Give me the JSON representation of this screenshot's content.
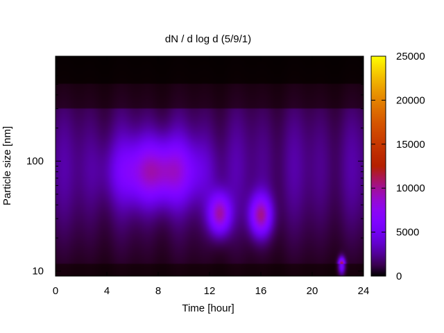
{
  "chart_data": {
    "type": "heatmap",
    "title": "dN / d log d (5/9/1)",
    "xlabel": "Time [hour]",
    "ylabel": "Particle size [nm]",
    "xlim": [
      0,
      24
    ],
    "ylim": [
      9,
      900
    ],
    "yscale": "log",
    "x_ticks": [
      "0",
      "4",
      "8",
      "12",
      "16",
      "20",
      "24"
    ],
    "y_ticks": [
      "10",
      "100"
    ],
    "colorbar": {
      "range": [
        0,
        25000
      ],
      "ticks": [
        "0",
        "5000",
        "10000",
        "15000",
        "20000",
        "25000"
      ],
      "colormap": "gnuplot default (black-blue-purple-red-orange-yellow)"
    },
    "features": [
      {
        "name": "broad background mode",
        "x_range": [
          0,
          24
        ],
        "diameter_nm": [
          20,
          400
        ],
        "value": 3000
      },
      {
        "name": "accumulation mode",
        "x": 8.0,
        "diameter_nm": 80,
        "value": 7500
      },
      {
        "name": "burst",
        "x": 12.8,
        "diameter_nm": 33,
        "value": 8500
      },
      {
        "name": "burst",
        "x": 16.0,
        "diameter_nm": 32,
        "value": 8500
      },
      {
        "name": "short spike",
        "x": 22.3,
        "diameter_nm": 11,
        "value": 14000
      }
    ],
    "grid": false,
    "legend": "colorbar-right"
  }
}
